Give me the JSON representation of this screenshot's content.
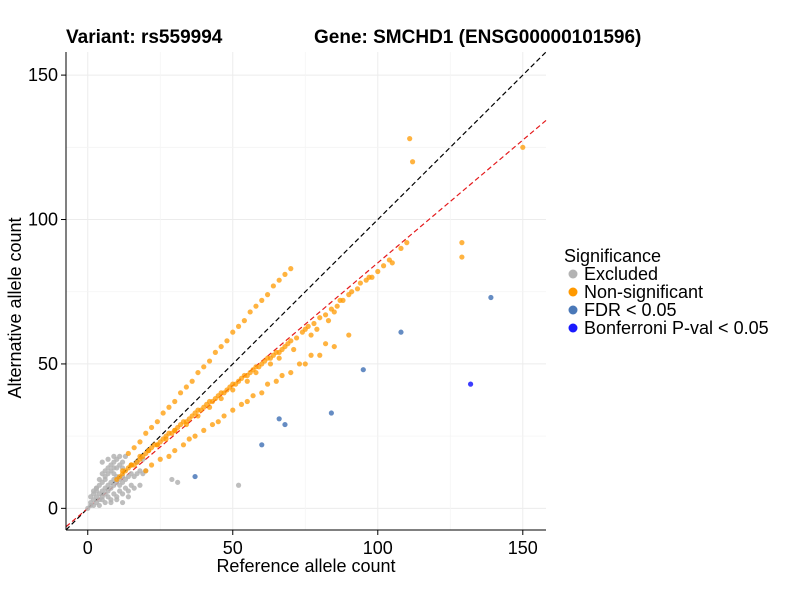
{
  "header": {
    "variant_label": "Variant: rs559994",
    "gene_label": "Gene: SMCHD1 (ENSG00000101596)"
  },
  "chart_data": {
    "type": "scatter",
    "xlabel": "Reference allele count",
    "ylabel": "Alternative allele count",
    "xlim": [
      -7.5,
      158
    ],
    "ylim": [
      -7.5,
      158
    ],
    "xticks": [
      0,
      50,
      100,
      150
    ],
    "yticks": [
      0,
      50,
      100,
      150
    ],
    "tick_labels_x": [
      "0",
      "50",
      "100",
      "150"
    ],
    "tick_labels_y": [
      "0",
      "50",
      "100",
      "150"
    ],
    "grid": true,
    "reference_lines": [
      {
        "name": "identity",
        "slope": 1.0,
        "intercept": 0,
        "color": "#000000",
        "style": "dashed"
      },
      {
        "name": "fitted",
        "slope": 0.85,
        "intercept": 0,
        "color": "#e41a1c",
        "style": "dashed"
      }
    ],
    "legend": {
      "title": "Significance",
      "placement": "right",
      "entries": [
        {
          "label": "Excluded",
          "color": "#b3b3b3"
        },
        {
          "label": "Non-significant",
          "color": "#ff9900"
        },
        {
          "label": "FDR < 0.05",
          "color": "#4a78b8"
        },
        {
          "label": "Bonferroni P-val < 0.05",
          "color": "#1a1aff"
        }
      ]
    },
    "series": [
      {
        "name": "Excluded",
        "color": "#b3b3b3",
        "x": [
          0,
          1,
          1,
          2,
          2,
          3,
          3,
          4,
          4,
          5,
          5,
          6,
          6,
          7,
          7,
          8,
          8,
          9,
          9,
          10,
          10,
          11,
          11,
          12,
          12,
          13,
          14,
          15,
          16,
          17,
          18,
          19,
          20,
          2,
          3,
          4,
          5,
          6,
          7,
          8,
          9,
          10,
          11,
          12,
          3,
          5,
          7,
          9,
          11,
          13,
          15,
          4,
          6,
          8,
          10,
          12,
          14,
          16,
          18,
          1,
          2,
          3,
          4,
          5,
          6,
          7,
          8,
          9,
          10,
          5,
          7,
          9,
          11,
          13,
          8,
          10,
          12,
          14,
          6,
          9,
          12,
          15,
          17,
          19,
          52,
          29,
          31
        ],
        "y": [
          0,
          1,
          2,
          1,
          3,
          2,
          4,
          3,
          5,
          4,
          6,
          5,
          7,
          6,
          8,
          7,
          9,
          8,
          10,
          9,
          11,
          8,
          10,
          9,
          11,
          10,
          11,
          12,
          11,
          12,
          13,
          12,
          13,
          5,
          6,
          8,
          9,
          11,
          12,
          13,
          14,
          14,
          15,
          16,
          7,
          3,
          4,
          5,
          6,
          7,
          8,
          1,
          2,
          3,
          4,
          5,
          6,
          7,
          8,
          4,
          6,
          7,
          10,
          12,
          13,
          14,
          15,
          16,
          17,
          16,
          17,
          18,
          18,
          18,
          2,
          3,
          2,
          4,
          10,
          12,
          14,
          15,
          16,
          17,
          8,
          10,
          9
        ]
      },
      {
        "name": "Non-significant",
        "color": "#ff9900",
        "x": [
          10,
          11,
          12,
          13,
          14,
          15,
          16,
          17,
          18,
          19,
          20,
          21,
          22,
          23,
          24,
          25,
          26,
          27,
          28,
          29,
          30,
          31,
          32,
          33,
          34,
          35,
          36,
          37,
          38,
          39,
          40,
          41,
          42,
          43,
          44,
          45,
          46,
          47,
          48,
          49,
          50,
          51,
          52,
          53,
          54,
          55,
          56,
          57,
          58,
          59,
          60,
          61,
          62,
          63,
          64,
          65,
          66,
          67,
          68,
          69,
          70,
          72,
          74,
          75,
          76,
          78,
          80,
          82,
          84,
          86,
          88,
          90,
          93,
          96,
          98,
          100,
          102,
          104,
          108,
          110,
          112,
          129,
          129,
          150,
          111,
          105,
          97,
          94,
          91,
          87,
          85,
          83,
          79,
          77,
          71,
          66,
          63,
          58,
          55,
          50,
          46,
          42,
          38,
          34,
          30,
          27,
          24,
          21,
          18,
          15,
          12,
          14,
          16,
          18,
          20,
          22,
          24,
          26,
          28,
          30,
          32,
          34,
          36,
          38,
          40,
          42,
          44,
          46,
          48,
          50,
          52,
          54,
          56,
          58,
          60,
          62,
          64,
          66,
          68,
          70,
          20,
          25,
          30,
          35,
          40,
          45,
          50,
          55,
          60,
          65,
          70,
          75,
          80,
          85,
          90,
          22,
          28,
          33,
          37,
          43,
          47,
          53,
          57,
          62,
          67,
          73,
          77,
          82
        ],
        "y": [
          10,
          11,
          12,
          13,
          14,
          15,
          15,
          16,
          17,
          18,
          19,
          20,
          21,
          22,
          22,
          23,
          24,
          25,
          26,
          26,
          27,
          28,
          29,
          30,
          30,
          31,
          32,
          33,
          34,
          34,
          35,
          36,
          37,
          37,
          38,
          39,
          40,
          40,
          41,
          42,
          43,
          43,
          44,
          45,
          46,
          46,
          47,
          48,
          49,
          49,
          50,
          51,
          52,
          52,
          53,
          54,
          54,
          55,
          56,
          57,
          58,
          59,
          61,
          62,
          63,
          64,
          66,
          67,
          69,
          70,
          72,
          74,
          76,
          79,
          80,
          82,
          84,
          86,
          90,
          92,
          120,
          92,
          87,
          125,
          128,
          85,
          80,
          78,
          75,
          72,
          68,
          65,
          62,
          60,
          55,
          52,
          50,
          47,
          44,
          41,
          38,
          35,
          32,
          29,
          27,
          24,
          22,
          20,
          18,
          15,
          13,
          19,
          21,
          23,
          26,
          28,
          30,
          33,
          35,
          37,
          40,
          42,
          44,
          47,
          49,
          51,
          54,
          56,
          58,
          61,
          63,
          65,
          68,
          70,
          72,
          74,
          77,
          79,
          81,
          83,
          13,
          17,
          20,
          24,
          27,
          30,
          34,
          37,
          40,
          44,
          47,
          50,
          53,
          56,
          60,
          15,
          18,
          22,
          25,
          29,
          32,
          36,
          39,
          43,
          46,
          50,
          53,
          57
        ]
      },
      {
        "name": "FDR < 0.05",
        "color": "#4a78b8",
        "x": [
          139,
          108,
          95,
          84,
          66,
          68,
          60,
          37
        ],
        "y": [
          73,
          61,
          48,
          33,
          31,
          29,
          22,
          11
        ]
      },
      {
        "name": "Bonferroni P-val < 0.05",
        "color": "#1a1aff",
        "x": [
          132
        ],
        "y": [
          43
        ]
      }
    ]
  }
}
